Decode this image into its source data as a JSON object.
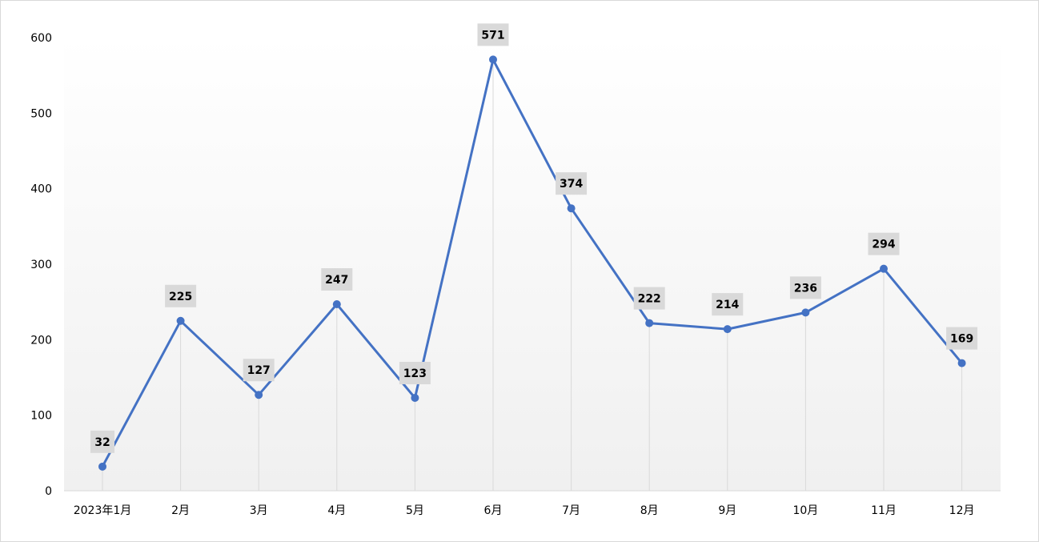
{
  "chart_data": {
    "type": "line",
    "categories": [
      "2023年1月",
      "2月",
      "3月",
      "4月",
      "5月",
      "6月",
      "7月",
      "8月",
      "9月",
      "10月",
      "11月",
      "12月"
    ],
    "series": [
      {
        "values": [
          32,
          225,
          127,
          247,
          123,
          571,
          374,
          222,
          214,
          236,
          294,
          169
        ]
      }
    ],
    "ylim": [
      0,
      600
    ],
    "yticks": [
      0,
      100,
      200,
      300,
      400,
      500,
      600
    ],
    "grid": false,
    "drop_lines": true,
    "data_labels": true,
    "colors": {
      "line": "#4472c4",
      "marker": "#4472c4",
      "label_box": "#d9d9d9",
      "drop_line": "#d9d9d9",
      "plot_bg_top": "#ffffff",
      "plot_bg_bottom": "#f0f0f0"
    }
  }
}
